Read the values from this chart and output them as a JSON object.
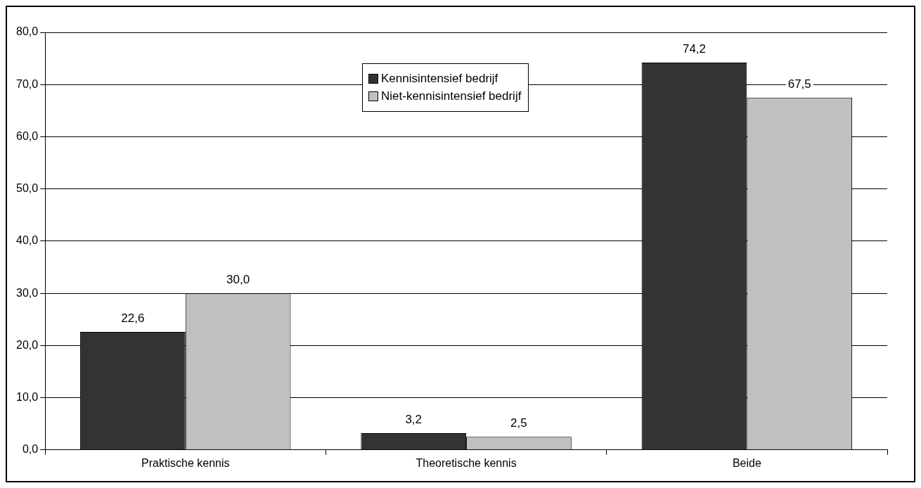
{
  "chart_data": {
    "type": "bar",
    "categories": [
      "Praktische kennis",
      "Theoretische kennis",
      "Beide"
    ],
    "series": [
      {
        "name": "Kennisintensief bedrijf",
        "color": "#333333",
        "values": [
          22.6,
          3.2,
          74.2
        ],
        "value_labels": [
          "22,6",
          "3,2",
          "74,2"
        ]
      },
      {
        "name": "Niet-kennisintensief bedrijf",
        "color": "#c0c0c0",
        "values": [
          30.0,
          2.5,
          67.5
        ],
        "value_labels": [
          "30,0",
          "2,5",
          "67,5"
        ]
      }
    ],
    "ylim": [
      0,
      80
    ],
    "yticks": [
      {
        "value": 0,
        "label": "0,0"
      },
      {
        "value": 10,
        "label": "10,0"
      },
      {
        "value": 20,
        "label": "20,0"
      },
      {
        "value": 30,
        "label": "30,0"
      },
      {
        "value": 40,
        "label": "40,0"
      },
      {
        "value": 50,
        "label": "50,0"
      },
      {
        "value": 60,
        "label": "60,0"
      },
      {
        "value": 70,
        "label": "70,0"
      },
      {
        "value": 80,
        "label": "80,0"
      }
    ],
    "grid": "y",
    "legend": "top"
  }
}
